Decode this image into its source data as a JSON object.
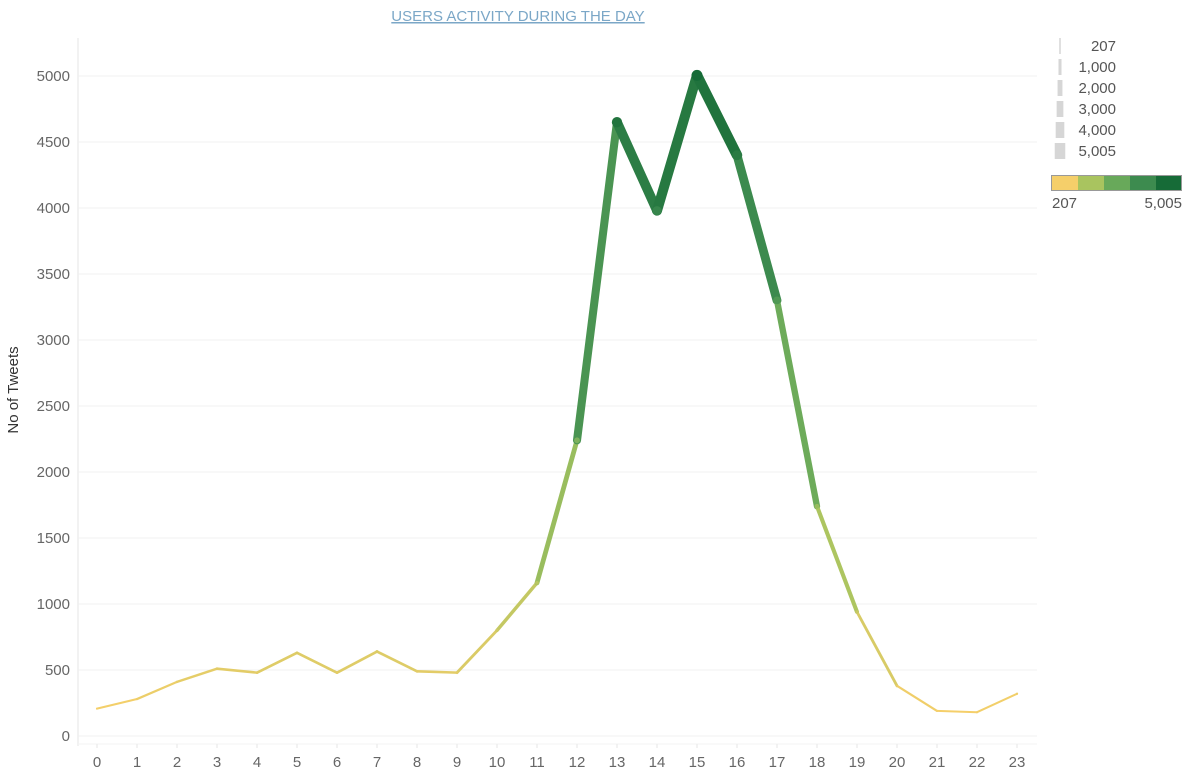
{
  "chart_data": {
    "type": "line",
    "title": "USERS ACTIVITY DURING THE DAY",
    "xlabel": "",
    "ylabel": "No of Tweets",
    "x": [
      0,
      1,
      2,
      3,
      4,
      5,
      6,
      7,
      8,
      9,
      10,
      11,
      12,
      13,
      14,
      15,
      16,
      17,
      18,
      19,
      20,
      21,
      22,
      23
    ],
    "x_tick_labels": [
      "0",
      "1",
      "2",
      "3",
      "4",
      "5",
      "6",
      "7",
      "8",
      "9",
      "10",
      "11",
      "12",
      "13",
      "14",
      "15",
      "16",
      "17",
      "18",
      "19",
      "20",
      "21",
      "22",
      "23"
    ],
    "values": [
      207,
      280,
      410,
      510,
      480,
      630,
      480,
      640,
      490,
      480,
      800,
      1160,
      2240,
      4650,
      3980,
      5005,
      4400,
      3300,
      1740,
      940,
      380,
      190,
      180,
      320
    ],
    "ylim": [
      0,
      5300
    ],
    "yticks": [
      0,
      500,
      1000,
      1500,
      2000,
      2500,
      3000,
      3500,
      4000,
      4500,
      5000
    ],
    "encoding": "line color and thickness vary with value",
    "grid": "horizontal",
    "size_legend": {
      "placement": "top-right",
      "labels": [
        "207",
        "1,000",
        "2,000",
        "3,000",
        "4,000",
        "5,005"
      ],
      "values": [
        207,
        1000,
        2000,
        3000,
        4000,
        5005
      ]
    },
    "color_legend": {
      "placement": "top-right",
      "min_label": "207",
      "max_label": "5,005",
      "min": 207,
      "max": 5005,
      "colors": [
        "#f5cf6a",
        "#a9c45f",
        "#68a95a",
        "#3d8b4f",
        "#166b37"
      ]
    }
  }
}
